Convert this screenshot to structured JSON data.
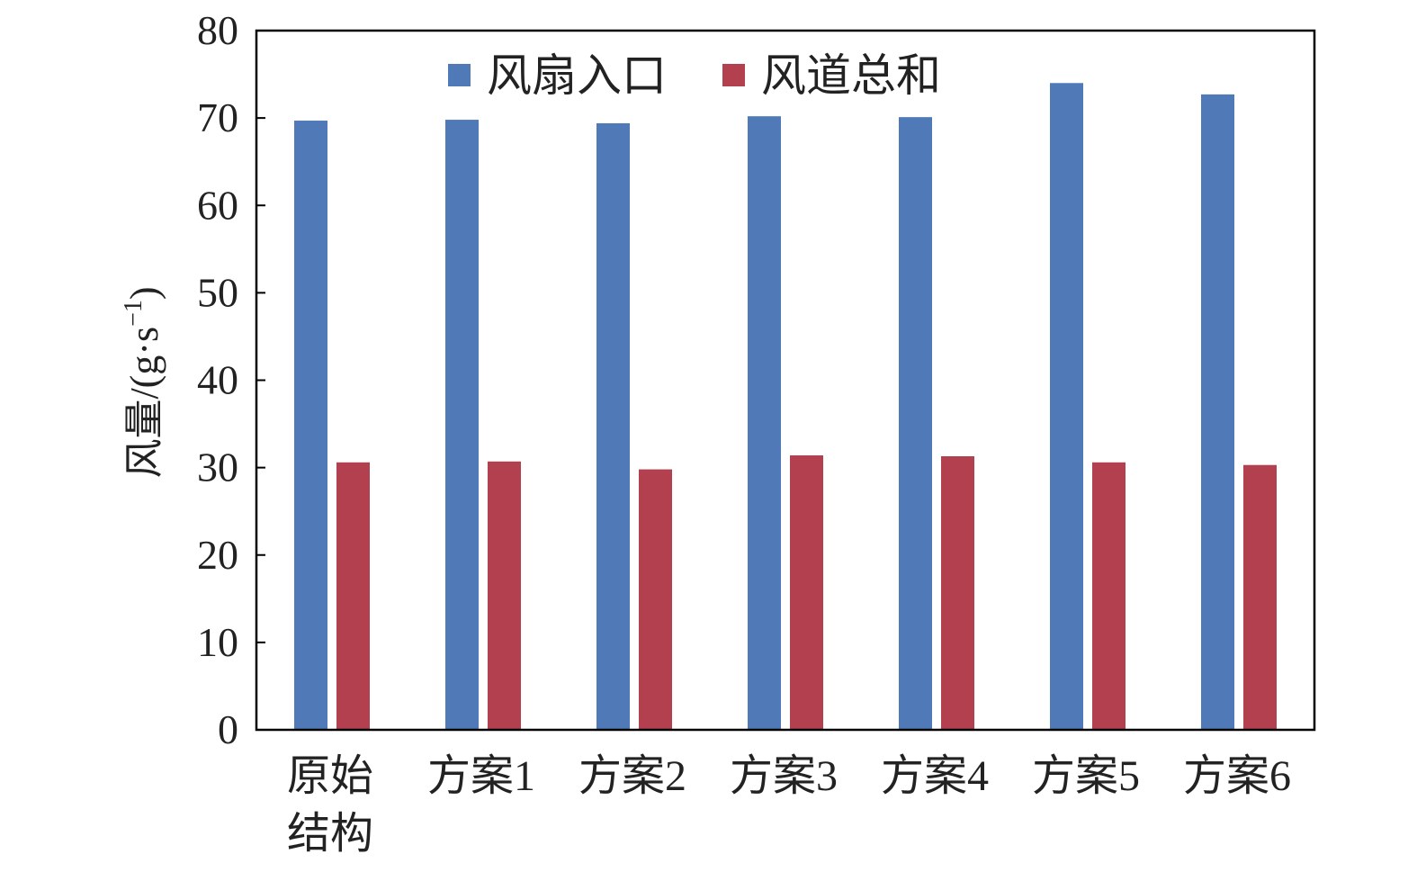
{
  "chart_data": {
    "type": "bar",
    "title": "",
    "xlabel": "",
    "ylabel": "风量/(g·s",
    "ylabel_sup": "−1",
    "ylabel_close": ")",
    "ylim": [
      0,
      80
    ],
    "yticks": [
      "0",
      "10",
      "20",
      "30",
      "40",
      "50",
      "60",
      "70",
      "80"
    ],
    "categories": [
      [
        "原始",
        "结构"
      ],
      [
        "方案1"
      ],
      [
        "方案2"
      ],
      [
        "方案3"
      ],
      [
        "方案4"
      ],
      [
        "方案5"
      ],
      [
        "方案6"
      ]
    ],
    "legend_position": "top",
    "series": [
      {
        "name": "风扇入口",
        "color": "#5079b7",
        "values": [
          69.7,
          69.8,
          69.4,
          70.2,
          70.1,
          74.0,
          72.7
        ]
      },
      {
        "name": "风道总和",
        "color": "#b3404f",
        "values": [
          30.6,
          30.7,
          29.8,
          31.4,
          31.3,
          30.6,
          30.3
        ]
      }
    ],
    "grid": false
  }
}
